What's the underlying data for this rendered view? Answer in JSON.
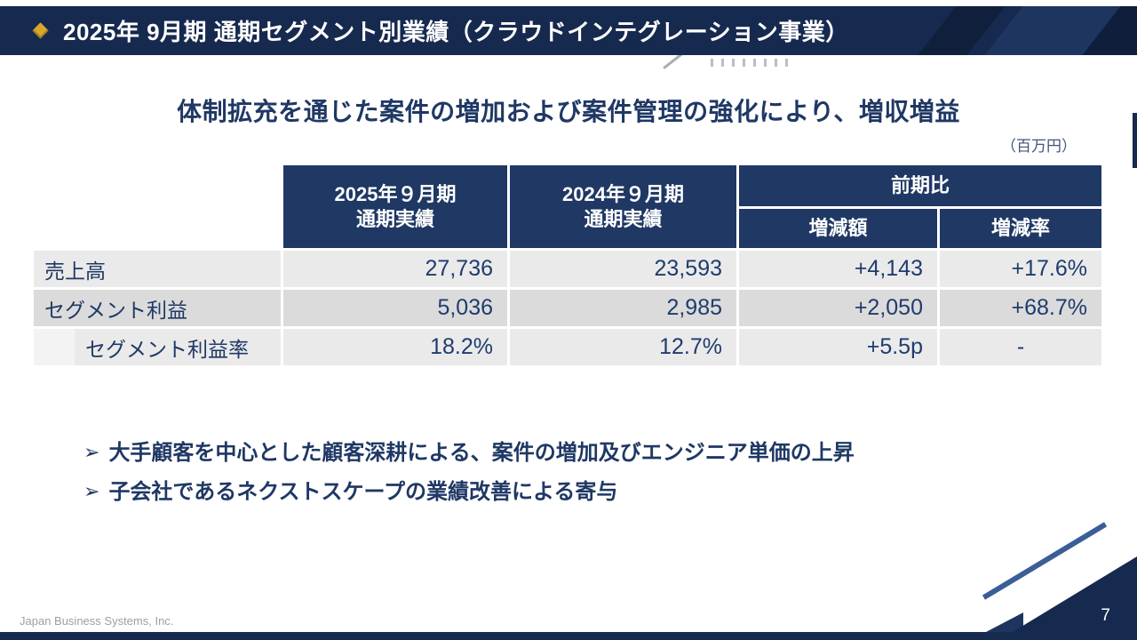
{
  "header": {
    "title": "2025年 9月期 通期セグメント別業績（クラウドインテグレーション事業）"
  },
  "heading": "体制拡充を通じた案件の増加および案件管理の強化により、増収増益",
  "unit_note": "（百万円）",
  "table": {
    "headers": {
      "fy2025_line1": "2025年９月期",
      "fy2025_line2": "通期実績",
      "fy2024_line1": "2024年９月期",
      "fy2024_line2": "通期実績",
      "yoy": "前期比",
      "yoy_amount": "増減額",
      "yoy_rate": "増減率"
    },
    "rows": [
      {
        "label": "売上高",
        "fy2025": "27,736",
        "fy2024": "23,593",
        "diff": "+4,143",
        "rate": "+17.6%"
      },
      {
        "label": "セグメント利益",
        "fy2025": "5,036",
        "fy2024": "2,985",
        "diff": "+2,050",
        "rate": "+68.7%"
      },
      {
        "label": "セグメント利益率",
        "fy2025": "18.2%",
        "fy2024": "12.7%",
        "diff": "+5.5p",
        "rate": "-"
      }
    ]
  },
  "bullets": {
    "marker": "➢",
    "items": [
      "大手顧客を中心とした顧客深耕による、案件の増加及びエンジニア単価の上昇",
      "子会社であるネクストスケープの業績改善による寄与"
    ]
  },
  "footer": {
    "company": "Japan Business Systems, Inc.",
    "page_number": "7"
  },
  "colors": {
    "navy": "#16294f",
    "table_header_navy": "#1f3864",
    "accent_gold": "#d9a72b",
    "text_navy": "#1f3864",
    "row_light": "#eaeaea",
    "row_dark": "#dbdbdb"
  }
}
